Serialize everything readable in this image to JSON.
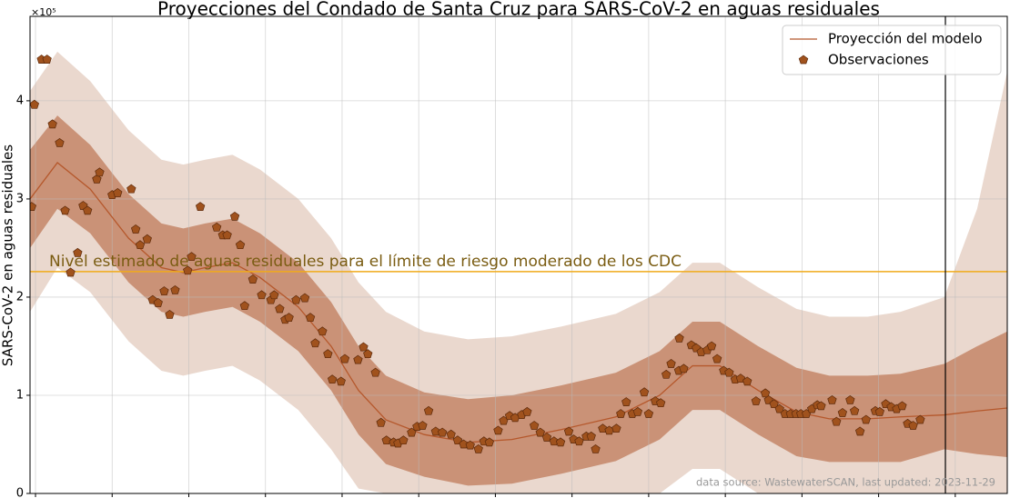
{
  "chart_data": {
    "type": "line",
    "title": "Proyecciones del Condado de Santa Cruz para SARS-CoV-2 en aguas residuales",
    "ylabel": "SARS-CoV-2 en aguas residuales",
    "y_offset_label": "×10⁵",
    "legend": "upper right",
    "grid": true,
    "xlim": [
      0,
      178.5
    ],
    "xticks": [
      1,
      15,
      29,
      43,
      57,
      71,
      85,
      99,
      113,
      127,
      141,
      155,
      169
    ],
    "ylim": [
      0,
      4.86
    ],
    "yticks": [
      0,
      1,
      2,
      3,
      4
    ],
    "x": [
      0,
      5,
      11,
      18,
      24,
      28,
      32,
      37,
      42,
      49,
      55,
      60,
      65,
      72,
      80,
      88,
      97,
      107,
      115,
      121,
      126,
      133,
      140,
      146,
      153,
      159,
      167,
      173,
      178.5
    ],
    "series": [
      {
        "name": "Proyección del modelo",
        "color": "#b5582c",
        "values": [
          3.0,
          3.37,
          3.1,
          2.6,
          2.3,
          2.25,
          2.3,
          2.35,
          2.2,
          1.9,
          1.5,
          1.05,
          0.75,
          0.6,
          0.52,
          0.55,
          0.65,
          0.78,
          1.0,
          1.3,
          1.3,
          1.05,
          0.83,
          0.76,
          0.76,
          0.78,
          0.8,
          0.84,
          0.87
        ]
      }
    ],
    "bands": [
      {
        "color": "#e8d4c9",
        "lower": [
          1.85,
          2.3,
          2.05,
          1.55,
          1.25,
          1.2,
          1.25,
          1.3,
          1.15,
          0.85,
          0.45,
          0.05,
          0,
          0,
          0,
          0,
          0,
          0,
          0,
          0.25,
          0.25,
          0,
          0,
          0,
          0,
          0,
          0,
          0,
          0
        ],
        "upper": [
          4.1,
          4.5,
          4.2,
          3.7,
          3.4,
          3.35,
          3.4,
          3.45,
          3.3,
          3.0,
          2.6,
          2.15,
          1.85,
          1.65,
          1.57,
          1.6,
          1.7,
          1.83,
          2.05,
          2.35,
          2.35,
          2.1,
          1.88,
          1.8,
          1.8,
          1.85,
          2.0,
          2.9,
          4.3
        ]
      },
      {
        "color": "#c68b6e",
        "lower": [
          2.5,
          2.9,
          2.65,
          2.15,
          1.85,
          1.8,
          1.85,
          1.9,
          1.75,
          1.45,
          1.05,
          0.6,
          0.3,
          0.17,
          0.08,
          0.1,
          0.2,
          0.33,
          0.55,
          0.85,
          0.85,
          0.6,
          0.38,
          0.32,
          0.32,
          0.32,
          0.45,
          0.4,
          0.37
        ],
        "upper": [
          3.5,
          3.85,
          3.55,
          3.05,
          2.75,
          2.7,
          2.75,
          2.8,
          2.65,
          2.35,
          1.95,
          1.5,
          1.2,
          1.03,
          0.96,
          1.0,
          1.1,
          1.23,
          1.45,
          1.75,
          1.75,
          1.5,
          1.28,
          1.2,
          1.2,
          1.22,
          1.32,
          1.5,
          1.65
        ]
      }
    ],
    "observations": {
      "name": "Observaciones",
      "color": "#a0521d",
      "edgecolor": "#5c2a0c",
      "x": [
        0.3,
        0.8,
        2.1,
        3.1,
        4.1,
        5.4,
        6.4,
        7.4,
        8.7,
        9.7,
        10.5,
        12.2,
        12.7,
        15,
        16,
        18.5,
        19.3,
        20.1,
        21.4,
        22.4,
        23.4,
        24.5,
        25.5,
        26.5,
        28.8,
        29.5,
        31.1,
        34.1,
        35.2,
        36,
        37.4,
        38.4,
        39.2,
        40.7,
        42.3,
        44,
        44.6,
        45.6,
        46.6,
        47.3,
        48.6,
        50.2,
        51.2,
        52.1,
        53.4,
        54.4,
        55.2,
        56.8,
        57.5,
        59.9,
        60.9,
        61.7,
        63.1,
        64.1,
        65.1,
        66.4,
        67.2,
        68.2,
        69.7,
        70.7,
        71.7,
        72.8,
        74.1,
        75.3,
        76.9,
        78.1,
        79.2,
        80.4,
        81.9,
        82.9,
        83.9,
        85.5,
        86.5,
        87.6,
        88.6,
        89.8,
        90.8,
        92.1,
        93.2,
        94.4,
        95.7,
        96.9,
        98.4,
        99.3,
        100.3,
        101.6,
        102.5,
        103.3,
        104.6,
        105.8,
        107.1,
        107.9,
        108.9,
        110,
        111,
        112.2,
        113,
        114.2,
        115.2,
        116.2,
        117.1,
        118.5,
        119.4,
        118.6,
        120.8,
        121.7,
        122.6,
        123.7,
        124.5,
        125.5,
        126.7,
        127.7,
        128.8,
        129.8,
        131,
        132.6,
        134.3,
        134.9,
        135.9,
        136.9,
        137.9,
        138.9,
        139.9,
        140.8,
        141.8,
        142.8,
        143.8,
        144.5,
        146.5,
        147.3,
        148.4,
        149.8,
        150.6,
        151.6,
        152.7,
        154.4,
        155.2,
        156.3,
        157.3,
        158.3,
        159.3,
        160.3,
        161.3,
        162.6
      ],
      "values": [
        2.92,
        3.96,
        4.42,
        4.42,
        3.76,
        3.57,
        2.88,
        2.25,
        2.45,
        2.93,
        2.88,
        3.2,
        3.27,
        3.04,
        3.06,
        3.1,
        2.69,
        2.53,
        2.59,
        1.97,
        1.94,
        2.06,
        1.82,
        2.07,
        2.27,
        2.41,
        2.92,
        2.71,
        2.63,
        2.63,
        2.82,
        2.53,
        1.91,
        2.18,
        2.02,
        1.97,
        2.02,
        1.88,
        1.77,
        1.79,
        1.97,
        1.99,
        1.79,
        1.53,
        1.65,
        1.42,
        1.16,
        1.14,
        1.37,
        1.36,
        1.49,
        1.42,
        1.23,
        0.72,
        0.54,
        0.52,
        0.51,
        0.54,
        0.62,
        0.68,
        0.69,
        0.84,
        0.63,
        0.62,
        0.6,
        0.54,
        0.5,
        0.49,
        0.45,
        0.53,
        0.52,
        0.64,
        0.74,
        0.79,
        0.77,
        0.8,
        0.83,
        0.69,
        0.62,
        0.57,
        0.53,
        0.52,
        0.63,
        0.55,
        0.53,
        0.58,
        0.58,
        0.45,
        0.66,
        0.64,
        0.66,
        0.81,
        0.93,
        0.81,
        0.83,
        1.03,
        0.81,
        0.94,
        0.92,
        1.21,
        1.32,
        1.25,
        1.27,
        1.58,
        1.51,
        1.48,
        1.44,
        1.46,
        1.5,
        1.37,
        1.25,
        1.23,
        1.16,
        1.17,
        1.14,
        0.94,
        1.02,
        0.95,
        0.91,
        0.86,
        0.81,
        0.81,
        0.81,
        0.81,
        0.81,
        0.86,
        0.9,
        0.89,
        0.95,
        0.73,
        0.82,
        0.95,
        0.84,
        0.63,
        0.75,
        0.84,
        0.83,
        0.91,
        0.88,
        0.86,
        0.89,
        0.71,
        0.69,
        0.75
      ]
    },
    "hline": {
      "value": 2.26,
      "color": "#f0aa1a",
      "label": "Nivel estimado de aguas residuales para el límite de riesgo moderado de los CDC",
      "label_color": "#7a5c12"
    },
    "vline": {
      "x": 167.2,
      "color": "#000000"
    },
    "source": "data source: WastewaterSCAN, last updated: 2023-11-29"
  }
}
